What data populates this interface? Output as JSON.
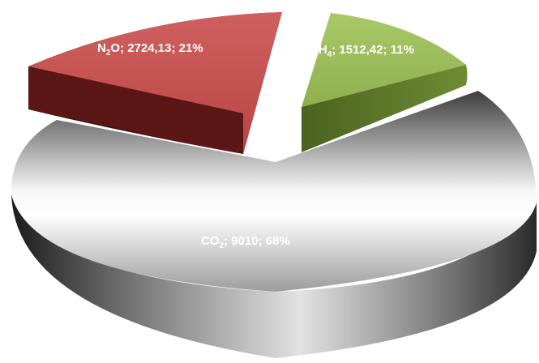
{
  "chart_data": {
    "type": "pie",
    "style": "3d-exploded",
    "title": "",
    "slices": [
      {
        "key": "n2o",
        "formula": "N2O",
        "label_parts": {
          "pre": "N",
          "sub": "2",
          "post": "O; 2724,13; 21%"
        },
        "value": 2724.13,
        "percent": 21,
        "color": "#c0504d"
      },
      {
        "key": "ch4",
        "formula": "CH4",
        "label_parts": {
          "pre": "CH",
          "sub": "4",
          "post": "; 1512,42; 11%"
        },
        "value": 1512.42,
        "percent": 11,
        "color": "#9bbb59"
      },
      {
        "key": "co2",
        "formula": "CO2",
        "label_parts": {
          "pre": "CO",
          "sub": "2",
          "post": "; 9010; 68%"
        },
        "value": 9010,
        "percent": 68,
        "color": "#bfbfbf"
      }
    ],
    "legend": "none"
  }
}
